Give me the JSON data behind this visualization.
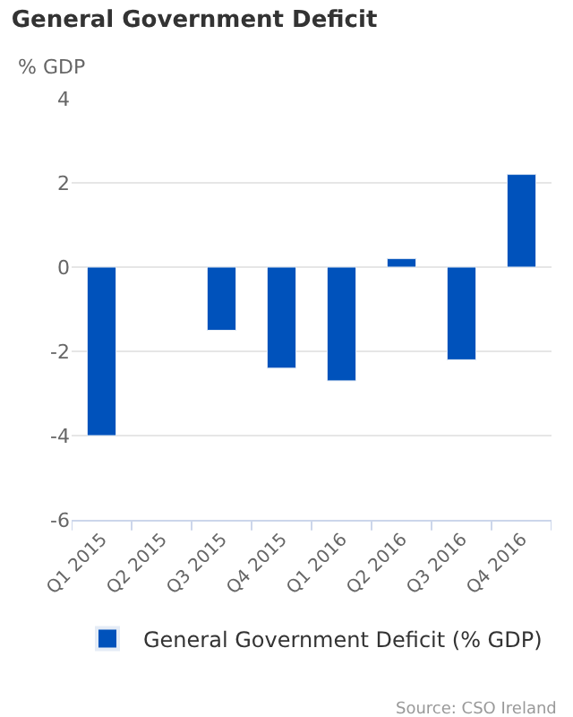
{
  "chart_data": {
    "type": "bar",
    "title": "General Government Deficit",
    "ylabel": "% GDP",
    "categories": [
      "Q1 2015",
      "Q2 2015",
      "Q3 2015",
      "Q4 2015",
      "Q1 2016",
      "Q2 2016",
      "Q3 2016",
      "Q4 2016"
    ],
    "series": [
      {
        "name": "General Government Deficit (% GDP)",
        "color": "#0052bb",
        "values": [
          -4.0,
          null,
          -1.5,
          -2.4,
          -2.7,
          0.2,
          -2.2,
          2.2
        ]
      }
    ],
    "ylim": [
      -6,
      4
    ],
    "yticks": [
      -6,
      -4,
      -2,
      0,
      2,
      4
    ],
    "grid": "y",
    "legend": "bottom",
    "annotations": [
      "Source: CSO Ireland"
    ]
  }
}
